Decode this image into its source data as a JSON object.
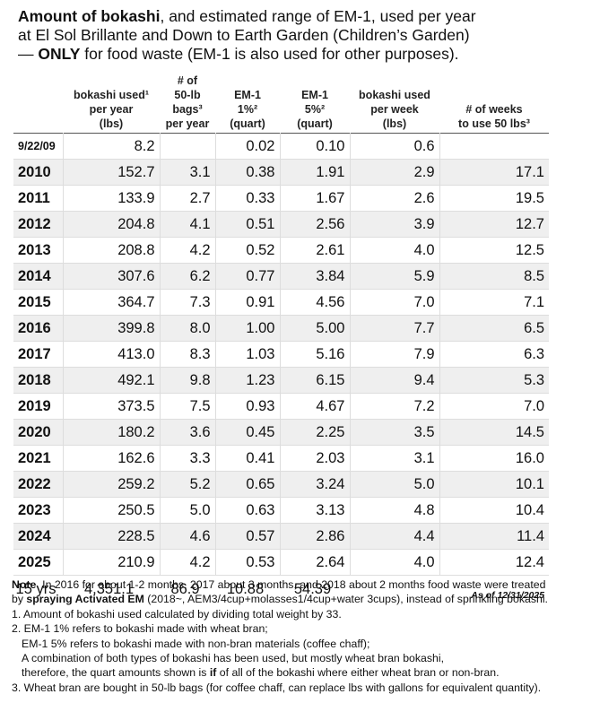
{
  "title": {
    "lines": [
      [
        "Amount of bokashi",
        ", and estimated range of EM-1, used per year"
      ],
      [
        "at El Sol Brillante and Down to Earth Garden (Children’s Garden)"
      ],
      [
        "— ",
        "ONLY",
        " for food waste (EM-1 is also used for other purposes)."
      ]
    ]
  },
  "table": {
    "header": [
      null,
      [
        "bokashi used¹",
        "per year",
        "(lbs)"
      ],
      [
        "# of",
        "50-lb bags³",
        "per year"
      ],
      [
        "EM-1",
        "1%²",
        "(quart)"
      ],
      [
        "EM-1",
        "5%²",
        "(quart)"
      ],
      [
        "bokashi used",
        "per week",
        "(lbs)"
      ],
      [
        "# of weeks",
        "to use 50 lbs³"
      ]
    ],
    "rows": [
      [
        "9/22/09",
        "8.2",
        null,
        "0.02",
        "0.10",
        "0.6",
        null
      ],
      [
        "2010",
        "152.7",
        "3.1",
        "0.38",
        "1.91",
        "2.9",
        "17.1"
      ],
      [
        "2011",
        "133.9",
        "2.7",
        "0.33",
        "1.67",
        "2.6",
        "19.5"
      ],
      [
        "2012",
        "204.8",
        "4.1",
        "0.51",
        "2.56",
        "3.9",
        "12.7"
      ],
      [
        "2013",
        "208.8",
        "4.2",
        "0.52",
        "2.61",
        "4.0",
        "12.5"
      ],
      [
        "2014",
        "307.6",
        "6.2",
        "0.77",
        "3.84",
        "5.9",
        "8.5"
      ],
      [
        "2015",
        "364.7",
        "7.3",
        "0.91",
        "4.56",
        "7.0",
        "7.1"
      ],
      [
        "2016",
        "399.8",
        "8.0",
        "1.00",
        "5.00",
        "7.7",
        "6.5"
      ],
      [
        "2017",
        "413.0",
        "8.3",
        "1.03",
        "5.16",
        "7.9",
        "6.3"
      ],
      [
        "2018",
        "492.1",
        "9.8",
        "1.23",
        "6.15",
        "9.4",
        "5.3"
      ],
      [
        "2019",
        "373.5",
        "7.5",
        "0.93",
        "4.67",
        "7.2",
        "7.0"
      ],
      [
        "2020",
        "180.2",
        "3.6",
        "0.45",
        "2.25",
        "3.5",
        "14.5"
      ],
      [
        "2021",
        "162.6",
        "3.3",
        "0.41",
        "2.03",
        "3.1",
        "16.0"
      ],
      [
        "2022",
        "259.2",
        "5.2",
        "0.65",
        "3.24",
        "5.0",
        "10.1"
      ],
      [
        "2023",
        "250.5",
        "5.0",
        "0.63",
        "3.13",
        "4.8",
        "10.4"
      ],
      [
        "2024",
        "228.5",
        "4.6",
        "0.57",
        "2.86",
        "4.4",
        "11.4"
      ],
      [
        "2025",
        "210.9",
        "4.2",
        "0.53",
        "2.64",
        "4.0",
        "12.4"
      ]
    ],
    "total": [
      "15 yrs",
      "4,351.1",
      "86.9",
      "10.88",
      "54.39"
    ],
    "as_of": "As of 12/31/2025"
  },
  "notes": {
    "lines": [
      [
        "Note",
        ". In 2016 for about 1-2 months, 2017 about 3 months, and 2018 about 2 months food waste were treated"
      ],
      [
        "by ",
        "spraying Activated EM",
        " (2018~, AEM3/4cup+molasses1/4cup+water 3cups), instead of sprinkling bokashi."
      ],
      [
        "1. Amount of bokashi used calculated by dividing total weight by 33."
      ],
      [
        "2. EM-1 1% refers to bokashi made with wheat bran;"
      ],
      [
        "EM-1 5% refers to bokashi made with non-bran materials (coffee chaff);"
      ],
      [
        "A combination of both types of bokashi has been used, but mostly wheat bran bokashi,"
      ],
      [
        "therefore, the quart amounts shown is ",
        "if",
        " of all of the bokashi where either wheat bran or non-bran."
      ],
      [
        "3. Wheat bran are bought in 50-lb bags (for coffee chaff, can replace lbs with gallons for equivalent quantity)."
      ]
    ]
  }
}
